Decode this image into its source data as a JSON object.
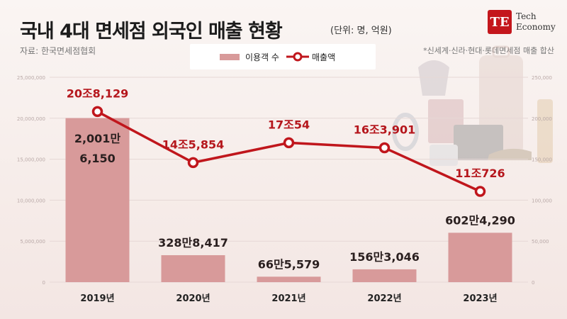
{
  "header": {
    "title": "국내 4대 면세점 외국인 매출 현황",
    "unit": "(단위: 명, 억원)",
    "source": "자료: 한국면세점협회",
    "footnote": "*신세계·신라·현대·롯데면세점 매출 합산"
  },
  "logo": {
    "mark": "TE",
    "line1": "Tech",
    "line2": "Economy"
  },
  "legend": {
    "bar_label": "이용객 수",
    "line_label": "매출액"
  },
  "colors": {
    "bar": "#d89a9a",
    "line": "#c0161c",
    "label": "#b5161c"
  },
  "chart_data": {
    "type": "bar",
    "categories": [
      "2019년",
      "2020년",
      "2021년",
      "2022년",
      "2023년"
    ],
    "series": [
      {
        "name": "이용객 수",
        "type": "bar",
        "axis": "left",
        "values": [
          20016150,
          3288417,
          665579,
          1563046,
          6024290
        ],
        "labels": [
          "2,001만\n6,150",
          "328만8,417",
          "66만5,579",
          "156만3,046",
          "602만4,290"
        ]
      },
      {
        "name": "매출액",
        "type": "line",
        "axis": "right",
        "values": [
          208129,
          145854,
          170054,
          163901,
          110726
        ],
        "labels": [
          "20조8,129",
          "14조5,854",
          "17조54",
          "16조3,901",
          "11조726"
        ]
      }
    ],
    "left_axis": {
      "ylim": [
        0,
        25000000
      ],
      "ticks": [
        "0",
        "5,000,000",
        "10,000,000",
        "15,000,000",
        "20,000,000",
        "25,000,000"
      ]
    },
    "right_axis": {
      "ylim": [
        0,
        250000
      ],
      "ticks": [
        "0",
        "50,000",
        "100,000",
        "150,000",
        "200,000",
        "250,000"
      ]
    },
    "grid": true,
    "legend_position": "top-center"
  }
}
